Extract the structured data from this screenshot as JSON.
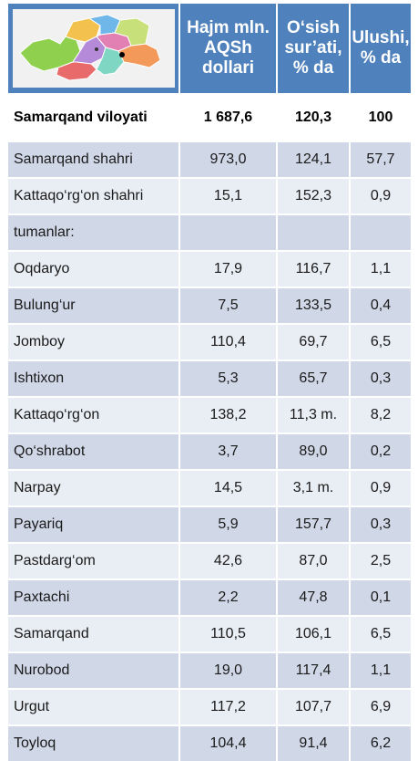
{
  "table": {
    "headers": {
      "volume": "Hajm mln. AQSh dollari",
      "growth": "O‘sish sur’ati, % da",
      "share": "Ulushi, % da"
    },
    "total": {
      "name": "Samarqand viloyati",
      "volume": "1 687,6",
      "growth": "120,3",
      "share": "100"
    },
    "rows": [
      {
        "name": "Samarqand  shahri",
        "volume": "973,0",
        "growth": "124,1",
        "share": "57,7"
      },
      {
        "name": "Kattaqo‘rg‘on shahri",
        "volume": "15,1",
        "growth": "152,3",
        "share": "0,9"
      },
      {
        "name": "tumanlar:",
        "volume": "",
        "growth": "",
        "share": ""
      },
      {
        "name": "Oqdaryo",
        "volume": "17,9",
        "growth": "116,7",
        "share": "1,1"
      },
      {
        "name": "Bulung‘ur",
        "volume": "7,5",
        "growth": "133,5",
        "share": "0,4"
      },
      {
        "name": "Jomboy",
        "volume": "110,4",
        "growth": "69,7",
        "share": "6,5"
      },
      {
        "name": "Ishtixon",
        "volume": "5,3",
        "growth": "65,7",
        "share": "0,3"
      },
      {
        "name": "Kattaqo‘rg‘on",
        "volume": "138,2",
        "growth": "11,3 m.",
        "share": "8,2"
      },
      {
        "name": "Qo‘shrabot",
        "volume": "3,7",
        "growth": "89,0",
        "share": "0,2"
      },
      {
        "name": "Narpay",
        "volume": "14,5",
        "growth": "3,1 m.",
        "share": "0,9"
      },
      {
        "name": "Payariq",
        "volume": "5,9",
        "growth": "157,7",
        "share": "0,3"
      },
      {
        "name": "Pastdarg‘om",
        "volume": "42,6",
        "growth": "87,0",
        "share": "2,5"
      },
      {
        "name": "Paxtachi",
        "volume": "2,2",
        "growth": "47,8",
        "share": "0,1"
      },
      {
        "name": "Samarqand",
        "volume": "110,5",
        "growth": "106,1",
        "share": "6,5"
      },
      {
        "name": "Nurobod",
        "volume": "19,0",
        "growth": "117,4",
        "share": "1,1"
      },
      {
        "name": "Urgut",
        "volume": "117,2",
        "growth": "107,7",
        "share": "6,9"
      },
      {
        "name": "Toyloq",
        "volume": "104,4",
        "growth": "91,4",
        "share": "6,2"
      }
    ]
  },
  "colors": {
    "header_bg": "#4f81bd",
    "row_dark": "#d0d8e8",
    "row_light": "#e9edf4"
  },
  "map": {
    "icon": "region-map-icon"
  }
}
